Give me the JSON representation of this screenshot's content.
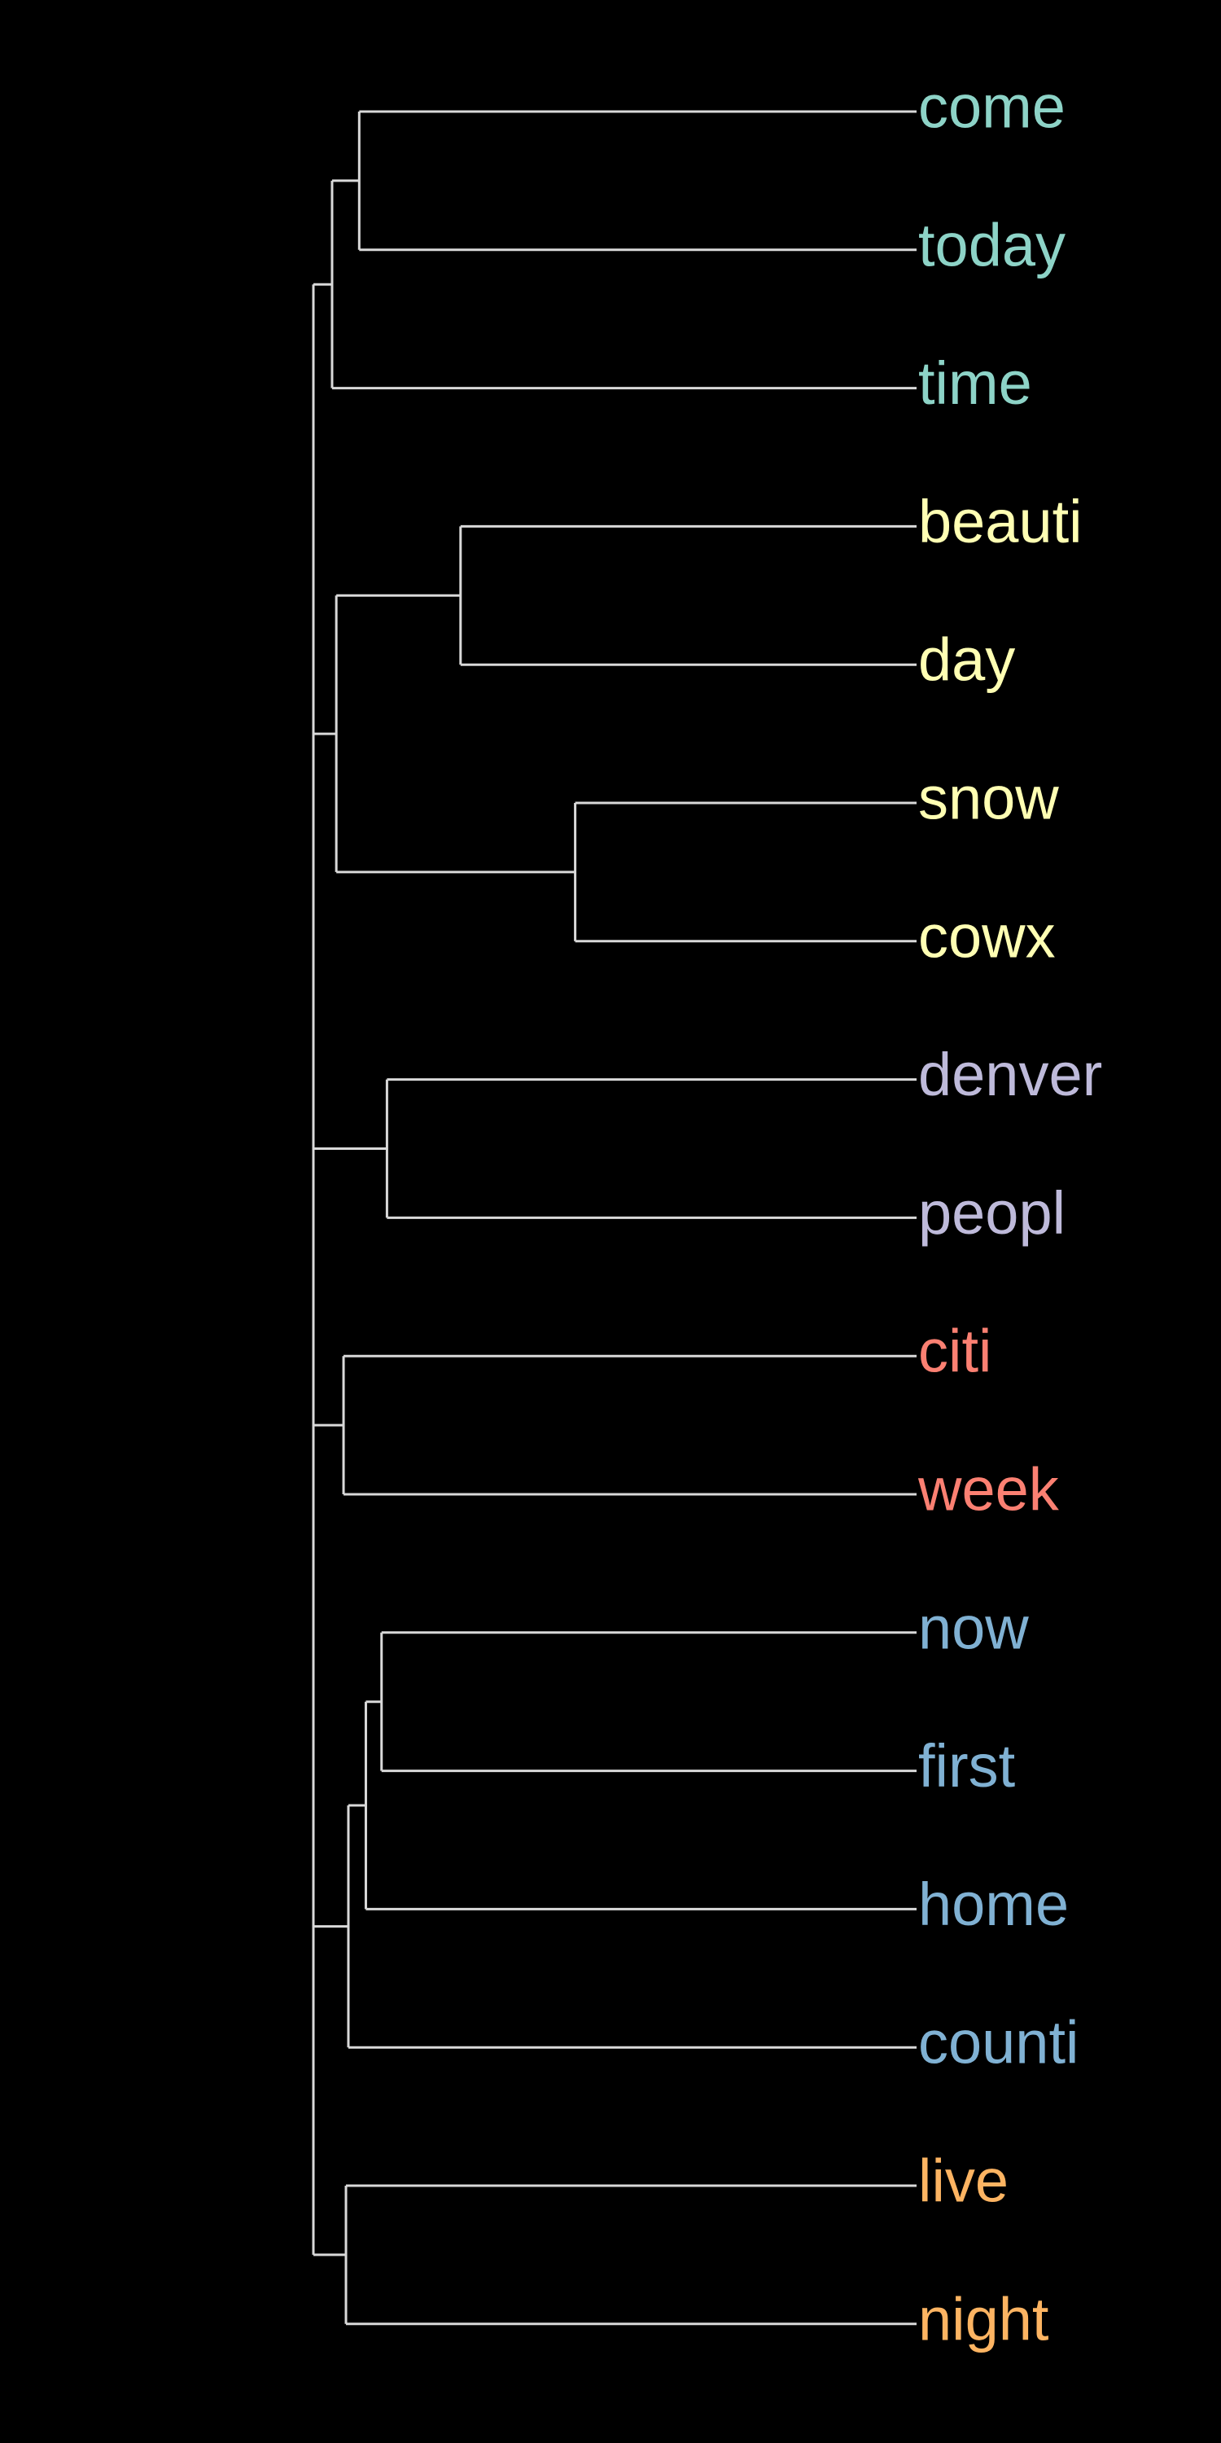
{
  "dendrogram": {
    "background": "#000000",
    "branch_color": "#d9d9d9",
    "orientation": "leaves-right",
    "clusters": [
      {
        "id": "c1",
        "color": "#8dd3c7",
        "leaves": [
          "come",
          "today",
          "time"
        ]
      },
      {
        "id": "c2",
        "color": "#ffffb3",
        "leaves": [
          "beauti",
          "day",
          "snow",
          "cowx"
        ]
      },
      {
        "id": "c3",
        "color": "#bebada",
        "leaves": [
          "denver",
          "peopl"
        ]
      },
      {
        "id": "c4",
        "color": "#fb8072",
        "leaves": [
          "citi",
          "week"
        ]
      },
      {
        "id": "c5",
        "color": "#80b1d3",
        "leaves": [
          "now",
          "first",
          "home",
          "counti"
        ]
      },
      {
        "id": "c6",
        "color": "#fdb462",
        "leaves": [
          "live",
          "night"
        ]
      }
    ],
    "leaves": [
      {
        "label": "come",
        "cluster": "c1"
      },
      {
        "label": "today",
        "cluster": "c1"
      },
      {
        "label": "time",
        "cluster": "c1"
      },
      {
        "label": "beauti",
        "cluster": "c2"
      },
      {
        "label": "day",
        "cluster": "c2"
      },
      {
        "label": "snow",
        "cluster": "c2"
      },
      {
        "label": "cowx",
        "cluster": "c2"
      },
      {
        "label": "denver",
        "cluster": "c3"
      },
      {
        "label": "peopl",
        "cluster": "c3"
      },
      {
        "label": "citi",
        "cluster": "c4"
      },
      {
        "label": "week",
        "cluster": "c4"
      },
      {
        "label": "now",
        "cluster": "c5"
      },
      {
        "label": "first",
        "cluster": "c5"
      },
      {
        "label": "home",
        "cluster": "c5"
      },
      {
        "label": "counti",
        "cluster": "c5"
      },
      {
        "label": "live",
        "cluster": "c6"
      },
      {
        "label": "night",
        "cluster": "c6"
      }
    ],
    "merges": [
      {
        "id": "m_come_today",
        "children": [
          "come",
          "today"
        ],
        "relative_height": 0.924
      },
      {
        "id": "m_c1",
        "children": [
          "m_come_today",
          "time"
        ],
        "relative_height": 0.969
      },
      {
        "id": "m_beauti_day",
        "children": [
          "beauti",
          "day"
        ],
        "relative_height": 0.756
      },
      {
        "id": "m_snow_cowx",
        "children": [
          "snow",
          "cowx"
        ],
        "relative_height": 0.566
      },
      {
        "id": "m_c2",
        "children": [
          "m_beauti_day",
          "m_snow_cowx"
        ],
        "relative_height": 0.962
      },
      {
        "id": "m_c1_c2",
        "children": [
          "m_c1",
          "m_c2"
        ],
        "relative_height": 1.0
      },
      {
        "id": "m_c3",
        "children": [
          "denver",
          "peopl"
        ],
        "relative_height": 0.878
      },
      {
        "id": "m_c4",
        "children": [
          "citi",
          "week"
        ],
        "relative_height": 0.95
      },
      {
        "id": "m_now_first",
        "children": [
          "now",
          "first"
        ],
        "relative_height": 0.887
      },
      {
        "id": "m_nfh",
        "children": [
          "m_now_first",
          "home"
        ],
        "relative_height": 0.913
      },
      {
        "id": "m_c5",
        "children": [
          "m_nfh",
          "counti"
        ],
        "relative_height": 0.942
      },
      {
        "id": "m_c6",
        "children": [
          "live",
          "night"
        ],
        "relative_height": 0.946
      },
      {
        "id": "root",
        "children": [
          "m_c1_c2",
          "m_c3",
          "m_c4",
          "m_c5",
          "m_c6"
        ],
        "relative_height": 1.0
      }
    ]
  }
}
